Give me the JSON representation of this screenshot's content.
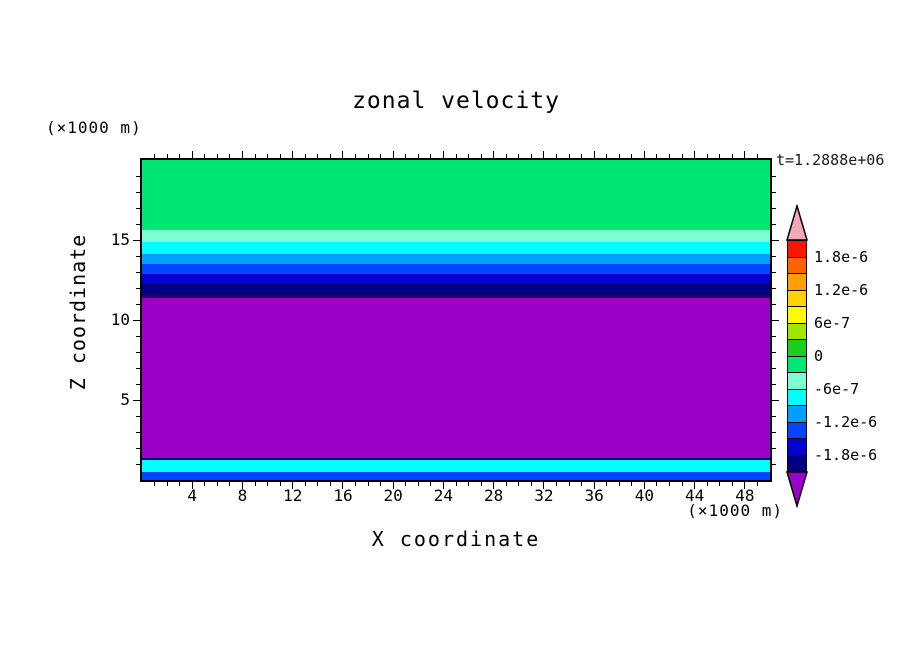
{
  "title": "zonal velocity",
  "timestamp": "t=1.2888e+06",
  "axis": {
    "y_unit": "(×1000 m)",
    "x_unit": "(×1000 m)",
    "y_label": "Z coordinate",
    "x_label": "X coordinate"
  },
  "chart_data": {
    "type": "heatmap",
    "title": "zonal velocity",
    "xlabel": "X coordinate (×1000 m)",
    "ylabel": "Z coordinate (×1000 m)",
    "time_label": "t=1.2888e+06",
    "x_range": [
      0,
      50
    ],
    "z_range": [
      0,
      20
    ],
    "x_ticks": [
      4,
      8,
      12,
      16,
      20,
      24,
      28,
      32,
      36,
      40,
      44,
      48
    ],
    "z_ticks": [
      5,
      10,
      15
    ],
    "grid": false,
    "legend_position": "right-colorbar",
    "bands": [
      {
        "z_from": 15.6,
        "z_to": 20.0,
        "color": "#00e673",
        "value": "-3e-7 to 0"
      },
      {
        "z_from": 14.9,
        "z_to": 15.6,
        "color": "#7dffd4",
        "value": "-6e-7 to -3e-7"
      },
      {
        "z_from": 14.15,
        "z_to": 14.9,
        "color": "#00ffff",
        "value": "-9e-7 to -6e-7"
      },
      {
        "z_from": 13.5,
        "z_to": 14.15,
        "color": "#00a0ff",
        "value": "-1.2e-6 to -9e-7"
      },
      {
        "z_from": 12.9,
        "z_to": 13.5,
        "color": "#0046ff",
        "value": "-1.5e-6 to -1.2e-6"
      },
      {
        "z_from": 12.25,
        "z_to": 12.9,
        "color": "#0000d2",
        "value": "-1.8e-6 to -1.5e-6"
      },
      {
        "z_from": 11.6,
        "z_to": 12.25,
        "color": "#000082",
        "value": "-2.1e-6 to -1.8e-6"
      },
      {
        "z_from": 11.35,
        "z_to": 11.6,
        "color": "#1e0064",
        "value": "about -2.1e-6"
      },
      {
        "z_from": 1.4,
        "z_to": 11.35,
        "color": "#9a00c8",
        "value": "below -2.1e-6"
      },
      {
        "z_from": 1.25,
        "z_to": 1.4,
        "color": "#000082",
        "value": "-2.1e-6 to -1.8e-6"
      },
      {
        "z_from": 0.5,
        "z_to": 1.25,
        "color": "#00ffff",
        "value": "-9e-7 to -6e-7"
      },
      {
        "z_from": 0.0,
        "z_to": 0.5,
        "color": "#0046ff",
        "value": "-1.5e-6 to -1.2e-6"
      }
    ],
    "colorbar": {
      "min": -2.1e-06,
      "max": 2.1e-06,
      "step": 3e-07,
      "over_color": "#f2a8b8",
      "under_color": "#9a00c8",
      "segments": [
        "#ff1400",
        "#ff6400",
        "#ffa000",
        "#ffd200",
        "#fffa00",
        "#a0e600",
        "#1ecd1e",
        "#00e673",
        "#7dffd4",
        "#00ffff",
        "#00a0ff",
        "#0046ff",
        "#0000d2",
        "#000082"
      ],
      "labels": [
        {
          "text": "1.8e-6",
          "boundary": 1
        },
        {
          "text": "1.2e-6",
          "boundary": 3
        },
        {
          "text": "6e-7",
          "boundary": 5
        },
        {
          "text": "0",
          "boundary": 7
        },
        {
          "text": "-6e-7",
          "boundary": 9
        },
        {
          "text": "-1.2e-6",
          "boundary": 11
        },
        {
          "text": "-1.8e-6",
          "boundary": 13
        }
      ]
    }
  }
}
